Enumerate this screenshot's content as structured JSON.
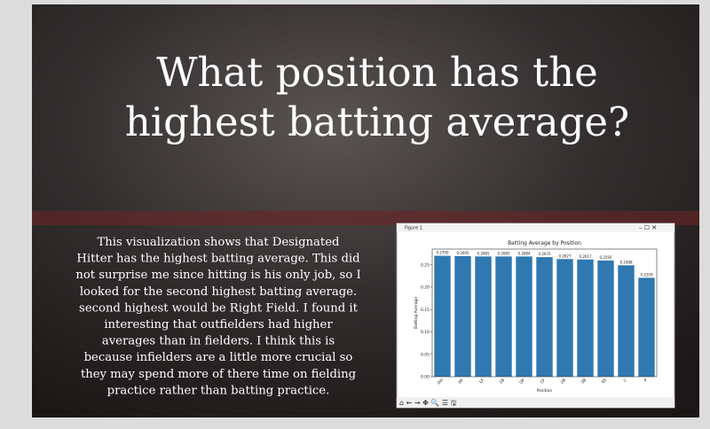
{
  "slide": {
    "title_lines": [
      "What position has the",
      "highest batting average?"
    ],
    "body_lines": [
      "This visualization shows that Designated",
      "Hitter has the highest batting average. This did",
      "not surprise me since hitting is his only job, so I",
      "looked for the second highest batting average.",
      "second highest would be Right Field.  I found it",
      "interesting that outfielders had higher",
      "averages than in fielders.  I think this is",
      "because infielders are a little more crucial so",
      "they may spend more of there time on fielding",
      "practice rather than batting practice."
    ]
  },
  "figure_window": {
    "title": "Figure 1"
  },
  "chart_data": {
    "type": "bar",
    "title": "Batting Average by Position",
    "x_label": "Position",
    "y_label": "Batting Average",
    "categories": [
      "DH",
      "RF",
      "LF",
      "1B",
      "OF",
      "CF",
      "2B",
      "3B",
      "SS",
      "C",
      "P"
    ],
    "values": [
      0.27,
      0.2695,
      0.2685,
      0.2685,
      0.2684,
      0.267,
      0.2627,
      0.2617,
      0.2595,
      0.2488,
      0.2209
    ],
    "value_labels": [
      "0.2700",
      "0.2695",
      "0.2685",
      "0.2685",
      "0.2684",
      "0.2670",
      "0.2627",
      "0.2617",
      "0.2595",
      "0.2488",
      "0.2209"
    ],
    "color": "#2f78b0",
    "ylim": [
      0,
      0.285
    ],
    "yticks": [
      {
        "value": 0,
        "label": "0.00"
      },
      {
        "value": 0.05,
        "label": "0.05"
      },
      {
        "value": 0.1,
        "label": "0.10"
      },
      {
        "value": 0.15,
        "label": "0.15"
      },
      {
        "value": 0.2,
        "label": "0.20"
      },
      {
        "value": 0.25,
        "label": "0.25"
      }
    ]
  }
}
